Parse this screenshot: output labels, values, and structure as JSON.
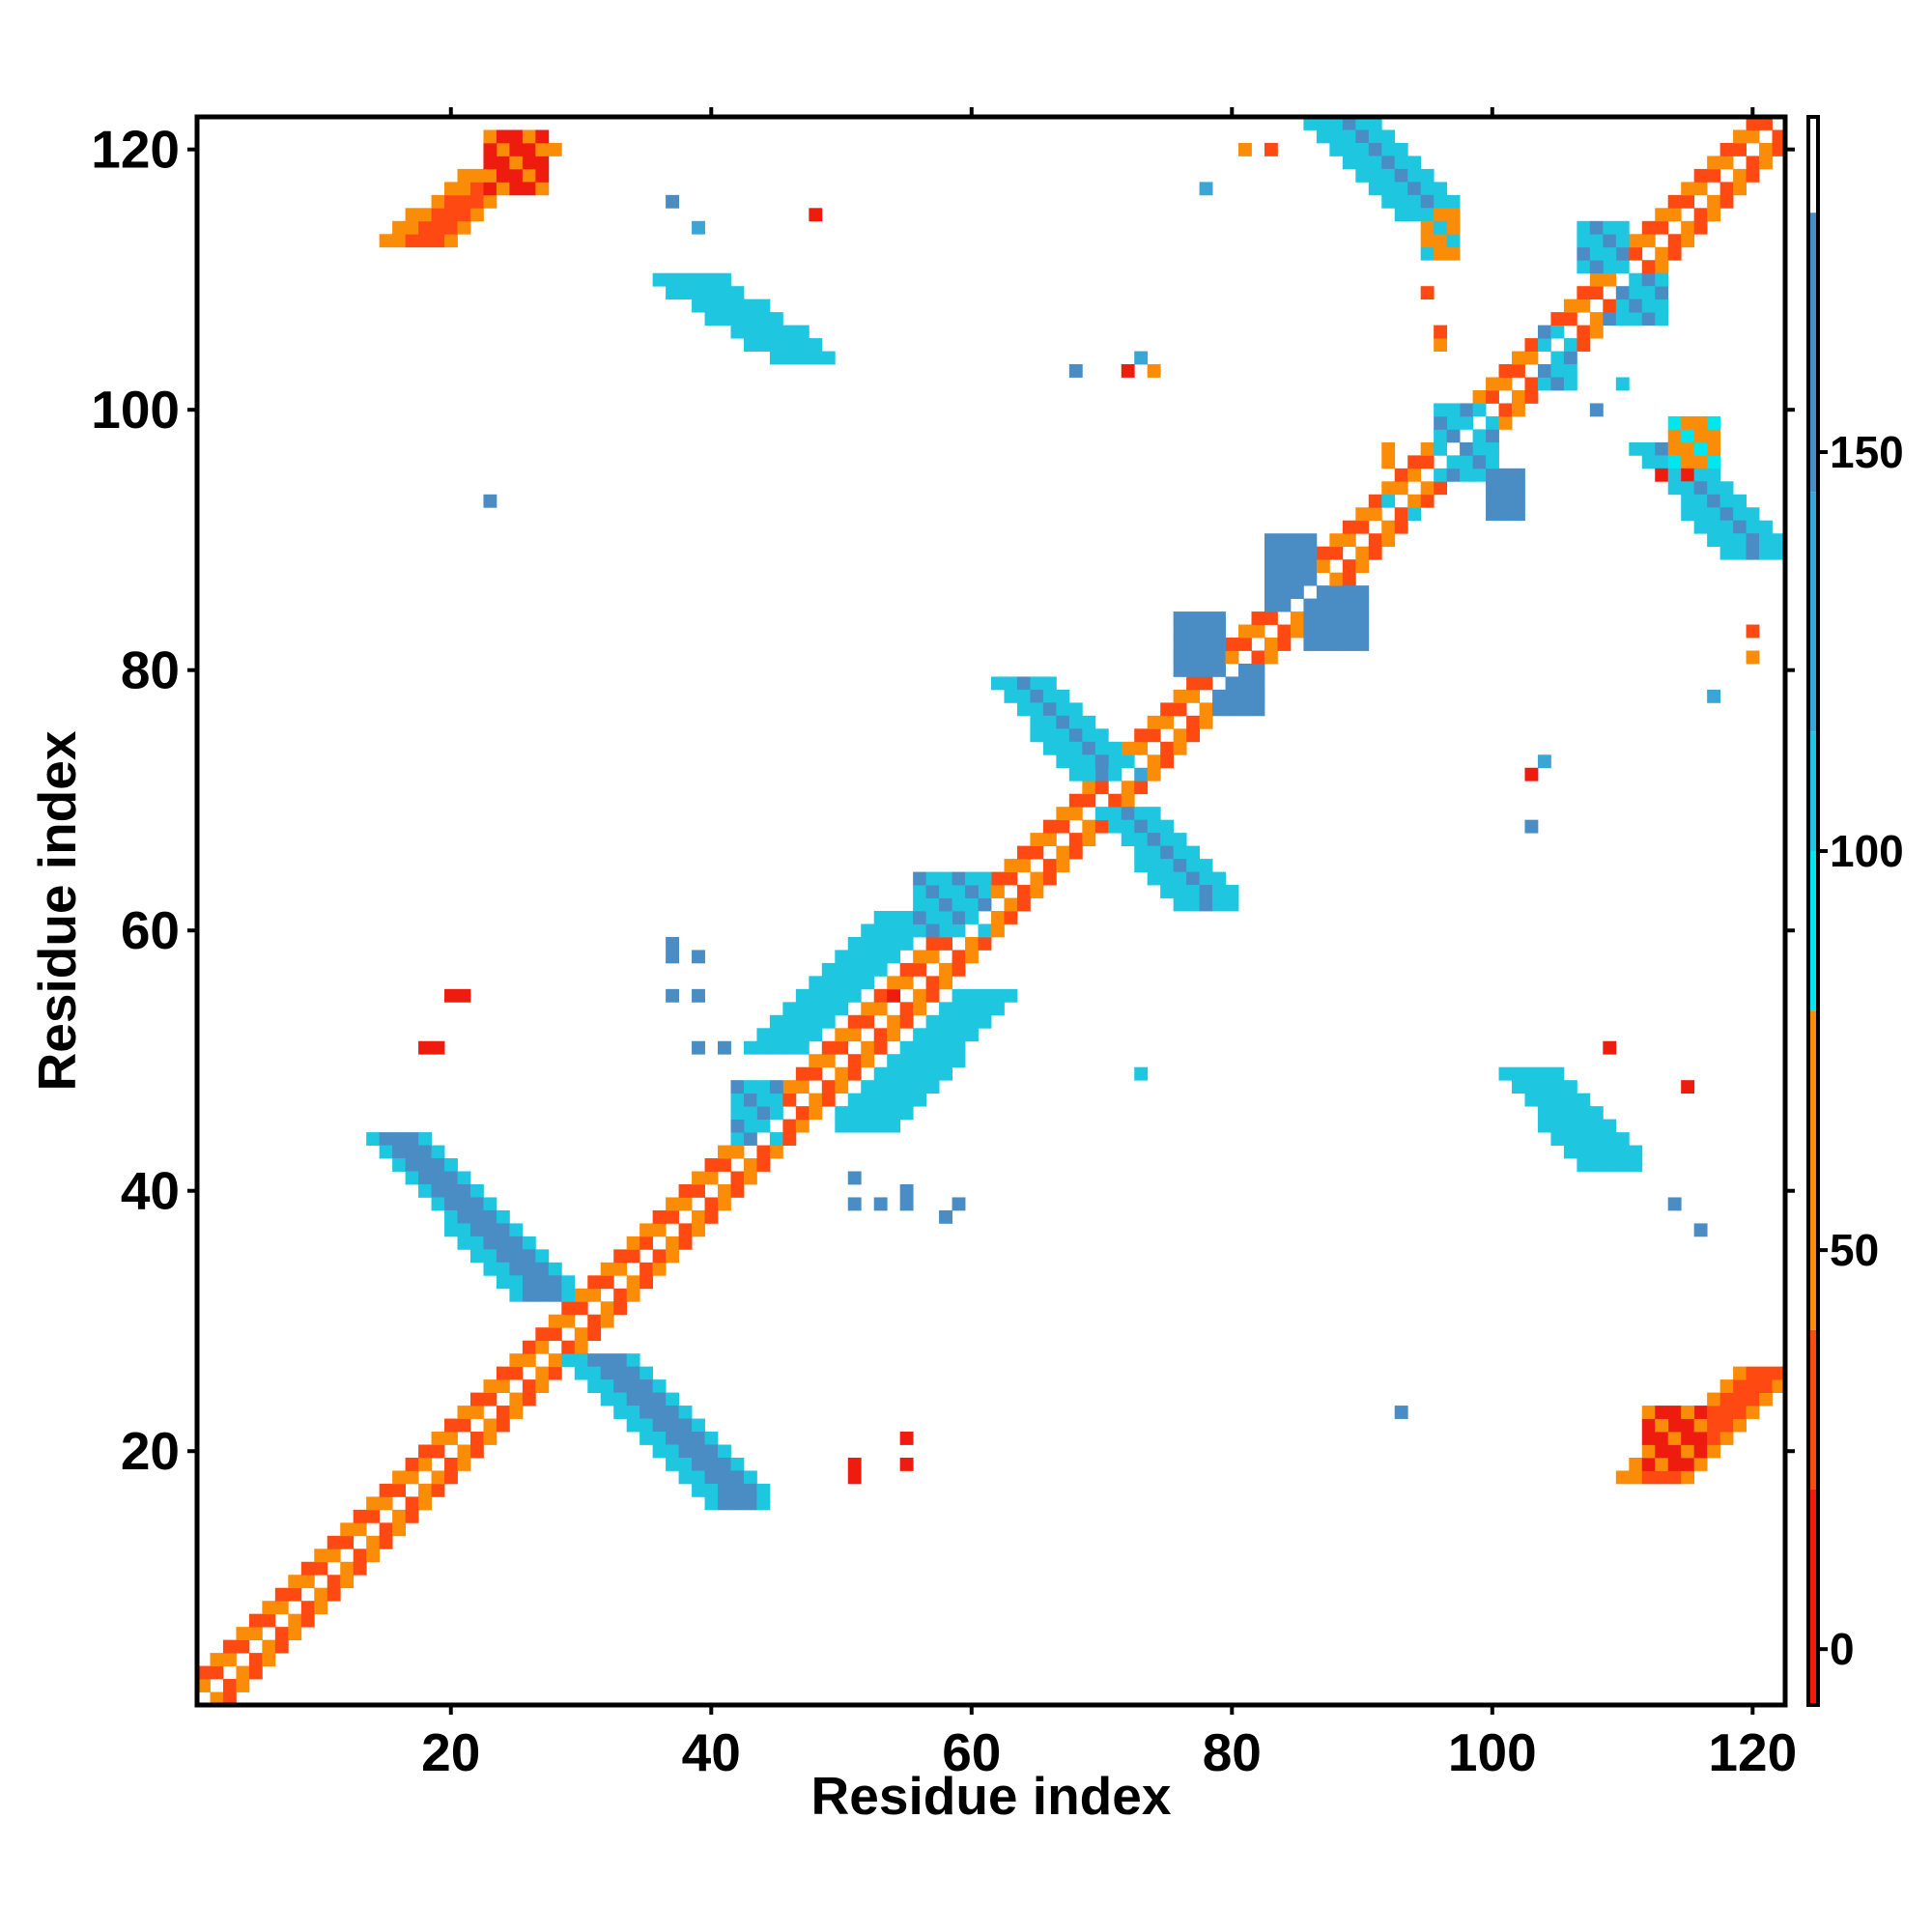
{
  "chart_data": {
    "type": "heatmap",
    "title": "",
    "xlabel": "Residue index",
    "ylabel": "Residue index",
    "xlim": [
      1,
      122
    ],
    "ylim": [
      1,
      122
    ],
    "x_ticks": [
      20,
      40,
      60,
      80,
      100,
      120
    ],
    "y_ticks": [
      20,
      40,
      60,
      80,
      100,
      120
    ],
    "colorbar": {
      "ticks": [
        0,
        50,
        100,
        150
      ],
      "range": [
        -7,
        192
      ],
      "bands": [
        {
          "from": -7,
          "to": 20,
          "color": "#ee1c0f"
        },
        {
          "from": 20,
          "to": 40,
          "color": "#fe4a12"
        },
        {
          "from": 40,
          "to": 80,
          "color": "#fb8c08"
        },
        {
          "from": 80,
          "to": 100,
          "color": "#00e6ee"
        },
        {
          "from": 100,
          "to": 115,
          "color": "#1ec6e0"
        },
        {
          "from": 115,
          "to": 145,
          "color": "#3aa6d5"
        },
        {
          "from": 145,
          "to": 180,
          "color": "#4a8cc4"
        },
        {
          "from": 180,
          "to": 192,
          "color": "#ffffff"
        }
      ]
    },
    "diagonal_segments": [
      [
        1,
        13,
        50
      ],
      [
        13,
        18,
        70
      ],
      [
        18,
        27,
        20
      ],
      [
        27,
        29,
        60
      ],
      [
        29,
        35,
        60
      ],
      [
        35,
        46,
        30
      ],
      [
        46,
        51,
        60
      ],
      [
        51,
        62,
        65
      ],
      [
        62,
        70,
        20
      ],
      [
        70,
        80,
        60
      ],
      [
        80,
        86,
        30
      ],
      [
        86,
        94,
        60
      ],
      [
        94,
        100,
        20
      ],
      [
        100,
        110,
        60
      ],
      [
        110,
        122,
        20
      ]
    ],
    "antiparallel_bands": [
      {
        "start": [
          16,
          44
        ],
        "end": [
          27,
          32
        ],
        "value": 160,
        "half_width": 1.5
      },
      {
        "start": [
          31,
          27
        ],
        "end": [
          42,
          16
        ],
        "value": 160,
        "half_width": 1.5
      },
      {
        "start": [
          64,
          79
        ],
        "end": [
          70,
          72
        ],
        "value": 160,
        "half_width": 1.2
      },
      {
        "start": [
          72,
          69
        ],
        "end": [
          78,
          62
        ],
        "value": 160,
        "half_width": 1.2
      },
      {
        "start": [
          88,
          122
        ],
        "end": [
          95,
          115
        ],
        "value": 160,
        "half_width": 1.2
      },
      {
        "start": [
          113,
          97
        ],
        "end": [
          120,
          89
        ],
        "value": 160,
        "half_width": 1.2
      },
      {
        "start": [
          38,
          110
        ],
        "end": [
          47,
          104
        ],
        "value": 110,
        "half_width": 1.3
      },
      {
        "start": [
          103,
          49
        ],
        "end": [
          109,
          42
        ],
        "value": 110,
        "half_width": 1.2
      }
    ],
    "parallel_bands": [
      {
        "start": [
          17,
          113
        ],
        "end": [
          26,
          120
        ],
        "value": 25,
        "half_width": 1.6
      },
      {
        "start": [
          112,
          18
        ],
        "end": [
          121,
          26
        ],
        "value": 25,
        "half_width": 1.6
      },
      {
        "start": [
          45,
          51
        ],
        "end": [
          55,
          61
        ],
        "value": 100,
        "half_width": 1.3
      },
      {
        "start": [
          52,
          45
        ],
        "end": [
          61,
          55
        ],
        "value": 100,
        "half_width": 1.3
      }
    ],
    "blobs": [
      {
        "x": [
          96,
          100
        ],
        "y": [
          95,
          100
        ],
        "value": 105
      },
      {
        "x": [
          100,
          102
        ],
        "y": [
          92,
          95
        ],
        "value": 150
      },
      {
        "x": [
          83,
          86
        ],
        "y": [
          85,
          90
        ],
        "value": 150
      },
      {
        "x": [
          86,
          90
        ],
        "y": [
          82,
          86
        ],
        "value": 150
      },
      {
        "x": [
          76,
          79
        ],
        "y": [
          80,
          84
        ],
        "value": 150
      },
      {
        "x": [
          79,
          82
        ],
        "y": [
          77,
          80
        ],
        "value": 150
      },
      {
        "x": [
          107,
          110
        ],
        "y": [
          111,
          114
        ],
        "value": 105
      },
      {
        "x": [
          110,
          113
        ],
        "y": [
          107,
          110
        ],
        "value": 105
      },
      {
        "x": [
          104,
          106
        ],
        "y": [
          102,
          106
        ],
        "value": 105
      },
      {
        "x": [
          56,
          61
        ],
        "y": [
          60,
          64
        ],
        "value": 105
      },
      {
        "x": [
          42,
          45
        ],
        "y": [
          44,
          48
        ],
        "value": 105
      },
      {
        "x": [
          95,
          97
        ],
        "y": [
          112,
          115
        ],
        "value": 60
      },
      {
        "x": [
          114,
          117
        ],
        "y": [
          96,
          99
        ],
        "value": 55
      },
      {
        "x": [
          23,
          27
        ],
        "y": [
          117,
          121
        ],
        "value": 15
      },
      {
        "x": [
          112,
          116
        ],
        "y": [
          19,
          23
        ],
        "value": 15
      }
    ],
    "scatter_cells": [
      [
        48,
        115,
        10
      ],
      [
        37,
        116,
        160
      ],
      [
        39,
        114,
        130
      ],
      [
        23,
        93,
        160
      ],
      [
        78,
        117,
        130
      ],
      [
        81,
        120,
        50
      ],
      [
        83,
        120,
        30
      ],
      [
        72,
        103,
        10
      ],
      [
        73,
        104,
        130
      ],
      [
        74,
        103,
        50
      ],
      [
        68,
        103,
        160
      ],
      [
        73,
        72,
        130
      ],
      [
        103,
        72,
        10
      ],
      [
        104,
        73,
        130
      ],
      [
        103,
        68,
        160
      ],
      [
        54,
        55,
        10
      ],
      [
        55,
        55,
        10
      ],
      [
        20,
        55,
        10
      ],
      [
        21,
        55,
        10
      ],
      [
        18,
        51,
        10
      ],
      [
        19,
        51,
        10
      ],
      [
        37,
        59,
        160
      ],
      [
        37,
        58,
        160
      ],
      [
        39,
        58,
        160
      ],
      [
        37,
        55,
        160
      ],
      [
        39,
        55,
        160
      ],
      [
        39,
        51,
        160
      ],
      [
        41,
        51,
        160
      ],
      [
        73,
        49,
        110
      ],
      [
        51,
        41,
        160
      ],
      [
        51,
        39,
        160
      ],
      [
        53,
        39,
        160
      ],
      [
        55,
        40,
        160
      ],
      [
        55,
        39,
        160
      ],
      [
        58,
        38,
        160
      ],
      [
        59,
        39,
        160
      ],
      [
        51,
        19,
        10
      ],
      [
        51,
        18,
        10
      ],
      [
        55,
        21,
        10
      ],
      [
        55,
        19,
        10
      ],
      [
        93,
        23,
        160
      ],
      [
        114,
        39,
        160
      ],
      [
        116,
        37,
        160
      ],
      [
        117,
        78,
        130
      ],
      [
        120,
        81,
        50
      ],
      [
        120,
        83,
        30
      ],
      [
        115,
        48,
        10
      ],
      [
        109,
        51,
        10
      ],
      [
        92,
        93,
        110
      ],
      [
        108,
        100,
        160
      ],
      [
        110,
        102,
        110
      ],
      [
        96,
        105,
        50
      ],
      [
        96,
        106,
        30
      ],
      [
        113,
        95,
        10
      ],
      [
        115,
        95,
        10
      ],
      [
        109,
        107,
        160
      ],
      [
        94,
        92,
        110
      ],
      [
        92,
        96,
        50
      ],
      [
        92,
        97,
        50
      ],
      [
        95,
        109,
        30
      ]
    ]
  }
}
